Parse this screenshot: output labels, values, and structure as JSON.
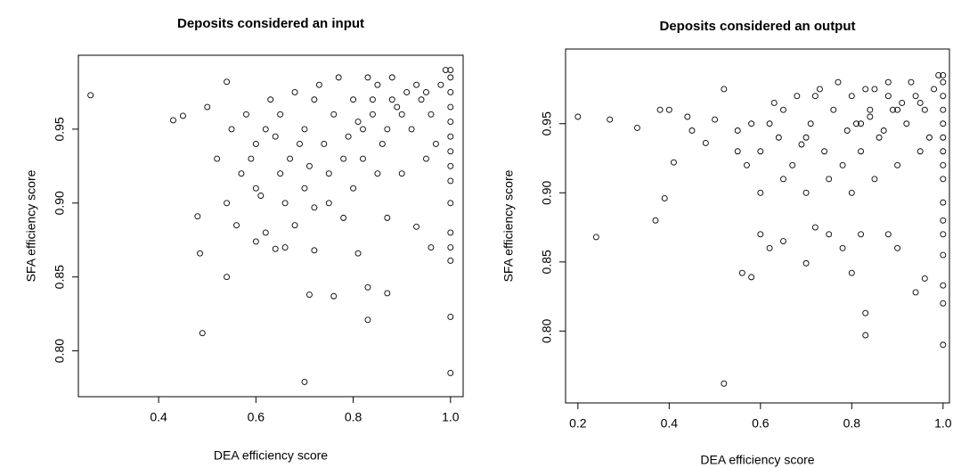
{
  "chart_data": [
    {
      "type": "scatter",
      "title": "Deposits considered an input",
      "x_label": "DEA efficiency score",
      "y_label": "SFA efficiency score",
      "xlim": [
        0.235,
        1.026
      ],
      "ylim": [
        0.769,
        1.0
      ],
      "xticks": [
        0.4,
        0.6,
        0.8,
        {
          "value": 1,
          "label": "1.0"
        }
      ],
      "yticks": [
        {
          "value": 0.8,
          "label": "0.80"
        },
        0.85,
        {
          "value": 0.9,
          "label": "0.90"
        },
        0.95
      ],
      "color": "#000000",
      "x": [
        0.26,
        0.43,
        0.45,
        0.48,
        0.485,
        0.49,
        0.54,
        0.54,
        0.56,
        0.52,
        0.5,
        0.54,
        0.7,
        0.71,
        0.76,
        0.83,
        0.83,
        0.87,
        0.81,
        0.96,
        0.93,
        0.6,
        0.62,
        0.64,
        0.66,
        0.68,
        0.72,
        0.72,
        0.75,
        0.78,
        0.87,
        1,
        1,
        1,
        1,
        1,
        1,
        0.6,
        0.62,
        0.65,
        0.67,
        0.7,
        0.72,
        0.74,
        0.76,
        0.78,
        0.8,
        0.82,
        0.84,
        0.85,
        0.86,
        0.88,
        0.9,
        0.92,
        0.94,
        0.96,
        0.98,
        0.97,
        0.95,
        0.9,
        0.85,
        0.8,
        0.75,
        0.7,
        0.65,
        0.6,
        0.58,
        0.63,
        0.68,
        0.73,
        0.77,
        0.83,
        0.88,
        0.93,
        0.99,
        0.82,
        0.87,
        0.91,
        0.79,
        0.69,
        0.64,
        0.57,
        0.55,
        0.59,
        0.61,
        0.66,
        0.71,
        1,
        1,
        1,
        1,
        1,
        1,
        1,
        1,
        1,
        0.84,
        0.81,
        0.89,
        0.95
      ],
      "y": [
        0.973,
        0.956,
        0.959,
        0.891,
        0.866,
        0.812,
        0.85,
        0.9,
        0.885,
        0.93,
        0.965,
        0.982,
        0.779,
        0.838,
        0.837,
        0.843,
        0.821,
        0.839,
        0.866,
        0.87,
        0.884,
        0.874,
        0.88,
        0.869,
        0.87,
        0.885,
        0.868,
        0.897,
        0.9,
        0.89,
        0.89,
        0.785,
        0.823,
        0.861,
        0.87,
        0.88,
        0.9,
        0.94,
        0.95,
        0.96,
        0.93,
        0.95,
        0.97,
        0.94,
        0.96,
        0.93,
        0.97,
        0.95,
        0.96,
        0.98,
        0.94,
        0.97,
        0.96,
        0.95,
        0.97,
        0.96,
        0.98,
        0.94,
        0.93,
        0.92,
        0.92,
        0.91,
        0.92,
        0.91,
        0.92,
        0.91,
        0.96,
        0.97,
        0.975,
        0.98,
        0.985,
        0.985,
        0.985,
        0.98,
        0.99,
        0.93,
        0.95,
        0.975,
        0.945,
        0.94,
        0.945,
        0.92,
        0.95,
        0.93,
        0.905,
        0.9,
        0.925,
        0.915,
        0.925,
        0.935,
        0.945,
        0.955,
        0.965,
        0.975,
        0.985,
        0.99,
        0.97,
        0.955,
        0.965,
        0.975
      ]
    },
    {
      "type": "scatter",
      "title": "Deposits considered an output",
      "x_label": "DEA efficiency score",
      "y_label": "SFA efficiency score",
      "xlim": [
        0.173,
        1.014
      ],
      "ylim": [
        0.748,
        1.004
      ],
      "xticks": [
        0.2,
        0.4,
        0.6,
        0.8,
        {
          "value": 1,
          "label": "1.0"
        }
      ],
      "yticks": [
        {
          "value": 0.8,
          "label": "0.80"
        },
        0.85,
        {
          "value": 0.9,
          "label": "0.90"
        },
        0.95
      ],
      "color": "#000000",
      "x": [
        0.2,
        0.24,
        0.27,
        0.33,
        0.37,
        0.39,
        0.41,
        0.38,
        0.4,
        0.44,
        0.45,
        0.48,
        0.5,
        0.52,
        0.52,
        0.56,
        0.58,
        0.55,
        0.6,
        0.62,
        0.65,
        0.7,
        0.72,
        0.75,
        0.78,
        0.8,
        0.82,
        0.83,
        0.83,
        0.88,
        0.9,
        0.94,
        0.96,
        1,
        1,
        1,
        1,
        1,
        1,
        1,
        0.6,
        0.62,
        0.65,
        0.67,
        0.7,
        0.72,
        0.74,
        0.76,
        0.78,
        0.8,
        0.82,
        0.84,
        0.85,
        0.86,
        0.88,
        0.9,
        0.92,
        0.94,
        0.96,
        0.98,
        0.97,
        0.95,
        0.9,
        0.85,
        0.8,
        0.75,
        0.7,
        0.65,
        0.6,
        0.58,
        0.63,
        0.68,
        0.73,
        0.77,
        0.83,
        0.88,
        0.93,
        0.99,
        0.82,
        0.87,
        0.91,
        0.79,
        0.69,
        0.64,
        0.57,
        0.55,
        1,
        1,
        1,
        1,
        1,
        1,
        1,
        1,
        1,
        0.84,
        0.81,
        0.89,
        0.95,
        0.71
      ],
      "y": [
        0.955,
        0.868,
        0.953,
        0.947,
        0.88,
        0.896,
        0.922,
        0.96,
        0.96,
        0.955,
        0.945,
        0.936,
        0.953,
        0.975,
        0.762,
        0.842,
        0.839,
        0.93,
        0.87,
        0.86,
        0.865,
        0.849,
        0.875,
        0.87,
        0.86,
        0.842,
        0.87,
        0.813,
        0.797,
        0.87,
        0.86,
        0.828,
        0.838,
        0.79,
        0.82,
        0.833,
        0.855,
        0.87,
        0.88,
        0.893,
        0.93,
        0.95,
        0.96,
        0.92,
        0.94,
        0.97,
        0.93,
        0.96,
        0.92,
        0.97,
        0.95,
        0.96,
        0.975,
        0.94,
        0.97,
        0.96,
        0.95,
        0.97,
        0.96,
        0.975,
        0.94,
        0.93,
        0.92,
        0.91,
        0.9,
        0.91,
        0.9,
        0.91,
        0.9,
        0.95,
        0.965,
        0.97,
        0.975,
        0.98,
        0.975,
        0.98,
        0.98,
        0.985,
        0.93,
        0.945,
        0.965,
        0.945,
        0.935,
        0.94,
        0.92,
        0.945,
        0.91,
        0.92,
        0.93,
        0.94,
        0.95,
        0.96,
        0.97,
        0.98,
        0.985,
        0.955,
        0.95,
        0.96,
        0.965,
        0.95
      ]
    }
  ]
}
